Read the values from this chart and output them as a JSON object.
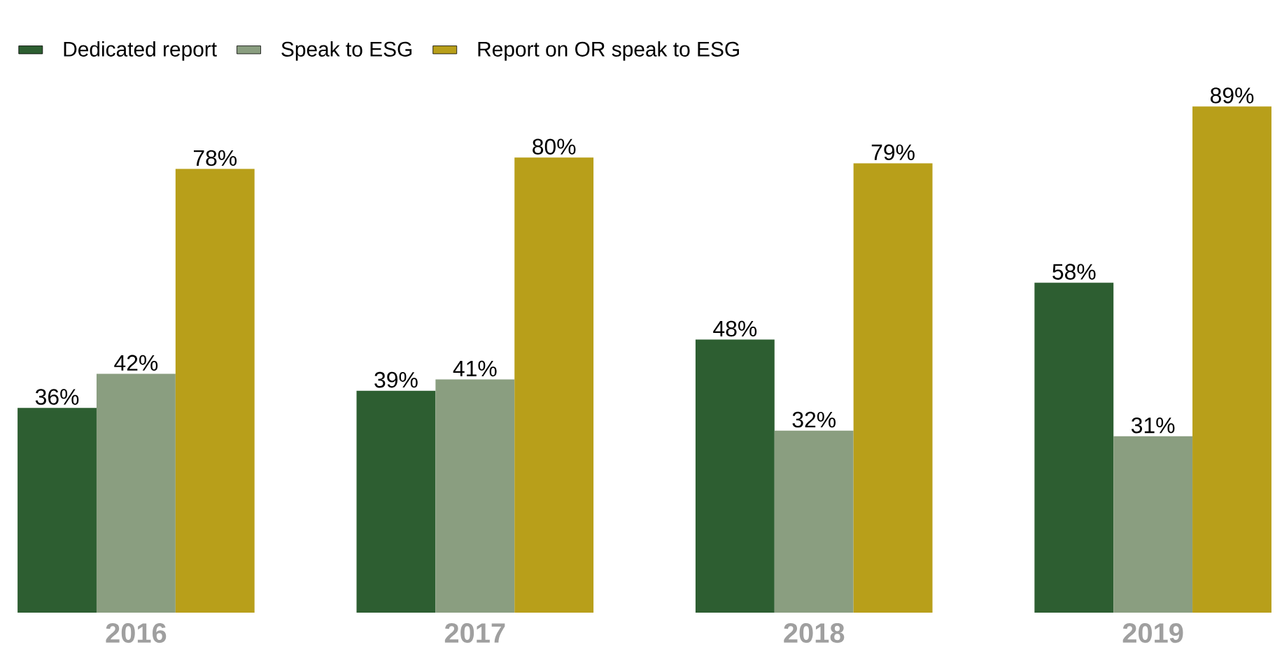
{
  "chart_data": {
    "type": "bar",
    "categories": [
      "2016",
      "2017",
      "2018",
      "2019"
    ],
    "series": [
      {
        "name": "Dedicated report",
        "color": "#2d5e31",
        "values": [
          36,
          39,
          48,
          58
        ],
        "value_labels": [
          "36%",
          "39%",
          "48%",
          "58%"
        ]
      },
      {
        "name": "Speak to ESG",
        "color": "#8a9e80",
        "values": [
          42,
          41,
          32,
          31
        ],
        "value_labels": [
          "42%",
          "41%",
          "32%",
          "31%"
        ]
      },
      {
        "name": "Report on OR speak to ESG",
        "color": "#b89f1a",
        "values": [
          78,
          80,
          79,
          89
        ],
        "value_labels": [
          "78%",
          "80%",
          "79%",
          "89%"
        ]
      }
    ],
    "legend": "top left"
  }
}
